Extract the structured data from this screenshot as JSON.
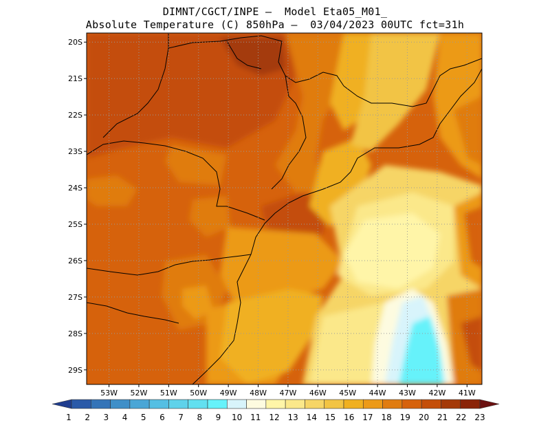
{
  "title_line1": "DIMNT/CGCT/INPE –  Model Eta05_M01_",
  "title_line2": "Absolute Temperature (C) 850hPa –  03/04/2023 00UTC fct=31h",
  "map": {
    "lon_range": [
      -53.75,
      -40.5
    ],
    "lat_range": [
      -29.4,
      -19.75
    ],
    "lat_ticks": [
      {
        "value": -20,
        "label": "20S"
      },
      {
        "value": -21,
        "label": "21S"
      },
      {
        "value": -22,
        "label": "22S"
      },
      {
        "value": -23,
        "label": "23S"
      },
      {
        "value": -24,
        "label": "24S"
      },
      {
        "value": -25,
        "label": "25S"
      },
      {
        "value": -26,
        "label": "26S"
      },
      {
        "value": -27,
        "label": "27S"
      },
      {
        "value": -28,
        "label": "28S"
      },
      {
        "value": -29,
        "label": "29S"
      }
    ],
    "lon_ticks": [
      {
        "value": -53,
        "label": "53W"
      },
      {
        "value": -52,
        "label": "52W"
      },
      {
        "value": -51,
        "label": "51W"
      },
      {
        "value": -50,
        "label": "50W"
      },
      {
        "value": -49,
        "label": "49W"
      },
      {
        "value": -48,
        "label": "48W"
      },
      {
        "value": -47,
        "label": "47W"
      },
      {
        "value": -46,
        "label": "46W"
      },
      {
        "value": -45,
        "label": "45W"
      },
      {
        "value": -44,
        "label": "44W"
      },
      {
        "value": -43,
        "label": "43W"
      },
      {
        "value": -42,
        "label": "42W"
      },
      {
        "value": -41,
        "label": "41W"
      }
    ],
    "gridlines": "dotted"
  },
  "colorbar": {
    "labels": [
      "1",
      "2",
      "3",
      "4",
      "5",
      "6",
      "7",
      "8",
      "9",
      "10",
      "11",
      "12",
      "13",
      "14",
      "15",
      "16",
      "17",
      "18",
      "19",
      "20",
      "21",
      "22",
      "23"
    ],
    "colors": [
      "#1f3d8f",
      "#2a5aa8",
      "#3474b8",
      "#3f8fc8",
      "#4aa6d6",
      "#55bfe3",
      "#5fd2ea",
      "#62e0f0",
      "#66f2fa",
      "#d8f4fb",
      "#fdfbe0",
      "#fff5a8",
      "#fbe88a",
      "#f6d566",
      "#f2c444",
      "#f0b020",
      "#ec9a18",
      "#e07c10",
      "#d6620c",
      "#c44e08",
      "#a43a08",
      "#8a2408",
      "#6b1010"
    ]
  }
}
